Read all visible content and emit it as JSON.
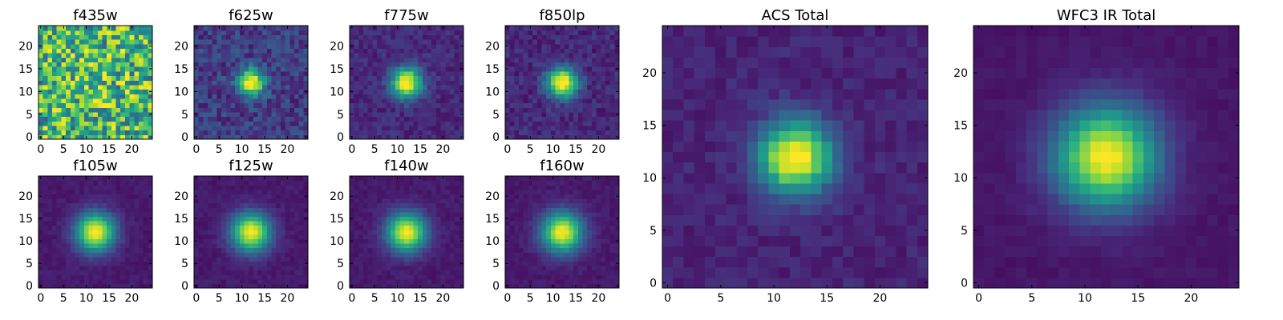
{
  "figure": {
    "colormap": "viridis",
    "colormap_stops": [
      "#440154",
      "#482878",
      "#3e4a89",
      "#31688e",
      "#26828e",
      "#1f9e89",
      "#35b779",
      "#6ece58",
      "#b5de2b",
      "#fde725"
    ]
  },
  "chart_data": [
    {
      "type": "heatmap",
      "title": "f435w",
      "grid": false,
      "xlim": [
        0,
        25
      ],
      "ylim": [
        0,
        25
      ],
      "xticks": [
        0,
        5,
        10,
        15,
        20
      ],
      "yticks": [
        0,
        5,
        10,
        15,
        20
      ],
      "cells": 25,
      "center": [
        12,
        12
      ],
      "peak_sigma": 4.0,
      "peak_amp": 0.08,
      "background": 0.65,
      "noise": 0.35
    },
    {
      "type": "heatmap",
      "title": "f625w",
      "grid": false,
      "xlim": [
        0,
        25
      ],
      "ylim": [
        0,
        25
      ],
      "xticks": [
        0,
        5,
        10,
        15,
        20
      ],
      "yticks": [
        0,
        5,
        10,
        15,
        20
      ],
      "cells": 25,
      "center": [
        12,
        12
      ],
      "peak_sigma": 2.0,
      "peak_amp": 0.92,
      "background": 0.18,
      "noise": 0.12
    },
    {
      "type": "heatmap",
      "title": "f775w",
      "grid": false,
      "xlim": [
        0,
        25
      ],
      "ylim": [
        0,
        25
      ],
      "xticks": [
        0,
        5,
        10,
        15,
        20
      ],
      "yticks": [
        0,
        5,
        10,
        15,
        20
      ],
      "cells": 25,
      "center": [
        12,
        12
      ],
      "peak_sigma": 2.3,
      "peak_amp": 0.93,
      "background": 0.12,
      "noise": 0.07
    },
    {
      "type": "heatmap",
      "title": "f850lp",
      "grid": false,
      "xlim": [
        0,
        25
      ],
      "ylim": [
        0,
        25
      ],
      "xticks": [
        0,
        5,
        10,
        15,
        20
      ],
      "yticks": [
        0,
        5,
        10,
        15,
        20
      ],
      "cells": 25,
      "center": [
        12,
        12
      ],
      "peak_sigma": 2.3,
      "peak_amp": 0.93,
      "background": 0.12,
      "noise": 0.08
    },
    {
      "type": "heatmap",
      "title": "ACS Total",
      "grid": false,
      "xlim": [
        0,
        25
      ],
      "ylim": [
        0,
        25
      ],
      "xticks": [
        0,
        5,
        10,
        15,
        20
      ],
      "yticks": [
        0,
        5,
        10,
        15,
        20
      ],
      "cells": 25,
      "center": [
        12,
        12
      ],
      "peak_sigma": 2.4,
      "peak_amp": 0.95,
      "background": 0.1,
      "noise": 0.05
    },
    {
      "type": "heatmap",
      "title": "WFC3 IR Total",
      "grid": false,
      "xlim": [
        0,
        25
      ],
      "ylim": [
        0,
        25
      ],
      "xticks": [
        0,
        5,
        10,
        15,
        20
      ],
      "yticks": [
        0,
        5,
        10,
        15,
        20
      ],
      "cells": 25,
      "center": [
        12,
        12
      ],
      "peak_sigma": 3.3,
      "peak_amp": 0.95,
      "background": 0.06,
      "noise": 0.02
    },
    {
      "type": "heatmap",
      "title": "f105w",
      "grid": false,
      "xlim": [
        0,
        25
      ],
      "ylim": [
        0,
        25
      ],
      "xticks": [
        0,
        5,
        10,
        15,
        20
      ],
      "yticks": [
        0,
        5,
        10,
        15,
        20
      ],
      "cells": 25,
      "center": [
        12,
        12
      ],
      "peak_sigma": 3.0,
      "peak_amp": 0.93,
      "background": 0.07,
      "noise": 0.03
    },
    {
      "type": "heatmap",
      "title": "f125w",
      "grid": false,
      "xlim": [
        0,
        25
      ],
      "ylim": [
        0,
        25
      ],
      "xticks": [
        0,
        5,
        10,
        15,
        20
      ],
      "yticks": [
        0,
        5,
        10,
        15,
        20
      ],
      "cells": 25,
      "center": [
        12,
        12
      ],
      "peak_sigma": 3.0,
      "peak_amp": 0.93,
      "background": 0.07,
      "noise": 0.03
    },
    {
      "type": "heatmap",
      "title": "f140w",
      "grid": false,
      "xlim": [
        0,
        25
      ],
      "ylim": [
        0,
        25
      ],
      "xticks": [
        0,
        5,
        10,
        15,
        20
      ],
      "yticks": [
        0,
        5,
        10,
        15,
        20
      ],
      "cells": 25,
      "center": [
        12,
        12
      ],
      "peak_sigma": 3.0,
      "peak_amp": 0.93,
      "background": 0.07,
      "noise": 0.03
    },
    {
      "type": "heatmap",
      "title": "f160w",
      "grid": false,
      "xlim": [
        0,
        25
      ],
      "ylim": [
        0,
        25
      ],
      "xticks": [
        0,
        5,
        10,
        15,
        20
      ],
      "yticks": [
        0,
        5,
        10,
        15,
        20
      ],
      "cells": 25,
      "center": [
        12,
        12
      ],
      "peak_sigma": 3.1,
      "peak_amp": 0.93,
      "background": 0.07,
      "noise": 0.03
    }
  ]
}
